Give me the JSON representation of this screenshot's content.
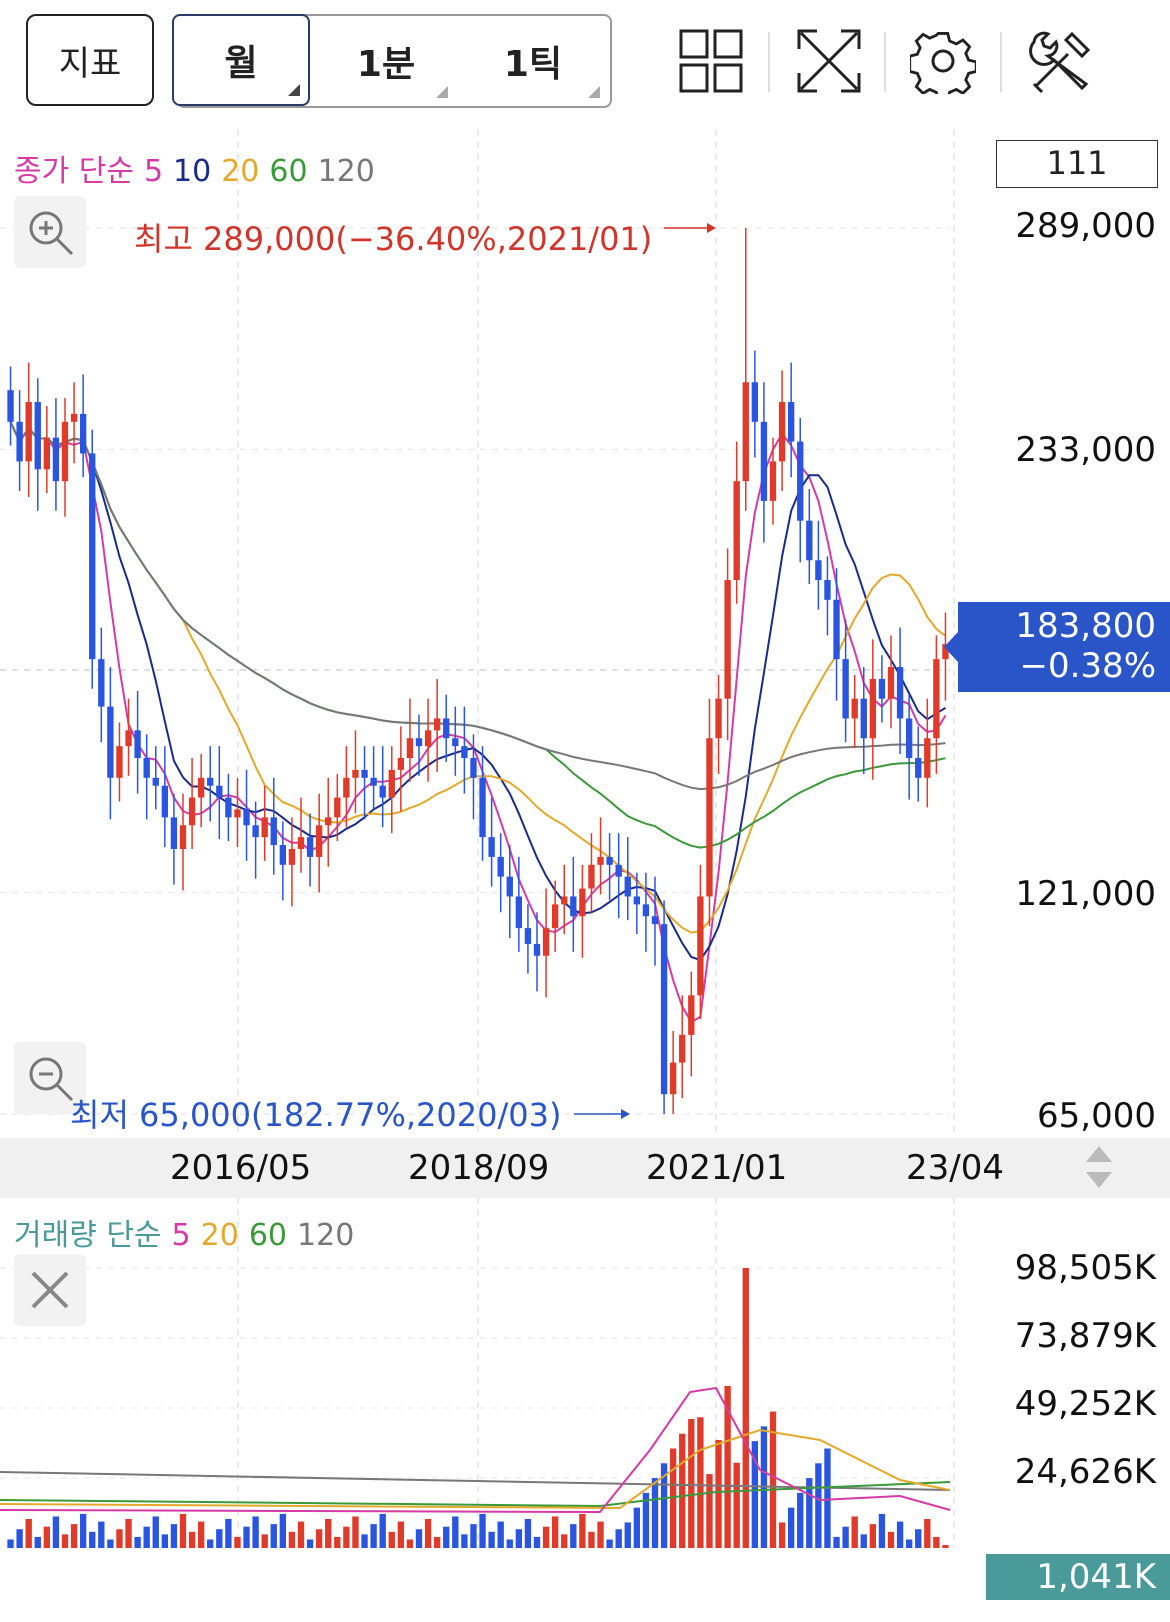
{
  "toolbar": {
    "indicator_label": "지표",
    "period_tabs": [
      {
        "label": "월",
        "active": true
      },
      {
        "label": "1분",
        "active": false
      },
      {
        "label": "1틱",
        "active": false
      }
    ],
    "icons": [
      "grid-layout-icon",
      "fullscreen-icon",
      "gear-icon",
      "tools-icon"
    ]
  },
  "price_panel": {
    "ma_legend": {
      "prefix": "종가 단순",
      "periods": [
        {
          "label": "5",
          "color": "#d63aa6"
        },
        {
          "label": "10",
          "color": "#1a2a8c"
        },
        {
          "label": "20",
          "color": "#e3a92a"
        },
        {
          "label": "60",
          "color": "#3a9a3a"
        },
        {
          "label": "120",
          "color": "#777777"
        }
      ]
    },
    "count_value": "111",
    "high_annotation": "최고 289,000(−36.40%,2021/01)",
    "low_annotation": "최저 65,000(182.77%,2020/03)",
    "current_price": "183,800",
    "current_change": "−0.38%",
    "y_labels": [
      "289,000",
      "233,000",
      "121,000",
      "65,000"
    ],
    "x_labels": [
      "2016/05",
      "2018/09",
      "2021/01",
      "23/04"
    ]
  },
  "volume_panel": {
    "ma_legend": {
      "prefix": "거래량 단순",
      "periods": [
        {
          "label": "5",
          "color": "#d63aa6"
        },
        {
          "label": "20",
          "color": "#e3a92a"
        },
        {
          "label": "60",
          "color": "#3a9a3a"
        },
        {
          "label": "120",
          "color": "#777777"
        }
      ]
    },
    "y_labels": [
      "98,505K",
      "73,879K",
      "49,252K",
      "24,626K"
    ],
    "current_volume": "1,041K"
  },
  "colors": {
    "up": "#e03a2a",
    "down": "#2a55e0",
    "ma5": "#d63aa6",
    "ma10": "#1a2a8c",
    "ma20": "#e3a92a",
    "ma60": "#3a9a3a",
    "ma120": "#777777"
  },
  "chart_data": {
    "type": "candlestick",
    "interval": "monthly",
    "y_range": [
      65000,
      289000
    ],
    "y_ticks": [
      65000,
      121000,
      233000,
      289000
    ],
    "x_ticks": [
      "2016/05",
      "2018/09",
      "2021/01",
      "23/04"
    ],
    "high": {
      "value": 289000,
      "date": "2021/01"
    },
    "low": {
      "value": 65000,
      "date": "2020/03"
    },
    "last_close": 183800,
    "closes": [
      240000,
      230000,
      245000,
      228000,
      236000,
      225000,
      240000,
      242000,
      232000,
      180000,
      168000,
      150000,
      158000,
      162000,
      155000,
      150000,
      148000,
      140000,
      132000,
      138000,
      145000,
      150000,
      148000,
      145000,
      140000,
      142000,
      138000,
      135000,
      140000,
      133000,
      128000,
      132000,
      135000,
      130000,
      138000,
      140000,
      145000,
      150000,
      152000,
      150000,
      148000,
      145000,
      152000,
      155000,
      160000,
      158000,
      162000,
      165000,
      160000,
      158000,
      155000,
      150000,
      135000,
      130000,
      125000,
      120000,
      112000,
      108000,
      105000,
      112000,
      118000,
      120000,
      115000,
      122000,
      128000,
      130000,
      128000,
      125000,
      120000,
      118000,
      115000,
      113000,
      70000,
      78000,
      85000,
      95000,
      120000,
      160000,
      170000,
      200000,
      225000,
      250000,
      240000,
      220000,
      230000,
      245000,
      235000,
      215000,
      205000,
      200000,
      195000,
      180000,
      165000,
      170000,
      160000,
      175000,
      170000,
      178000,
      165000,
      155000,
      150000,
      160000,
      180000,
      183800
    ],
    "volume_range_k": [
      0,
      98505
    ],
    "volume_ticks_k": [
      24626,
      49252,
      73879,
      98505
    ],
    "volume_peak_k": {
      "value": 98505,
      "date": "2021/01"
    },
    "last_volume_k": 1041
  }
}
